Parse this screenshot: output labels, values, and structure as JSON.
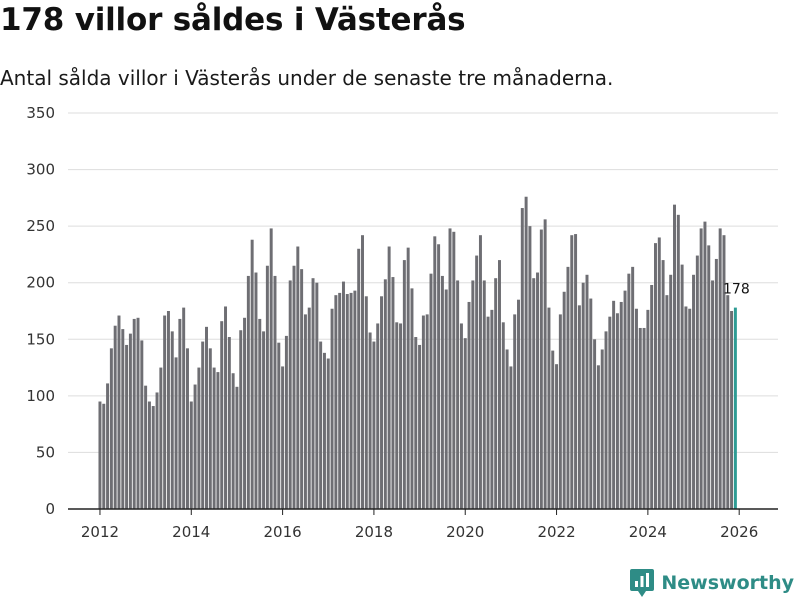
{
  "title": "178 villor såldes i Västerås",
  "subtitle": "Antal sålda villor i Västerås under de senaste tre månaderna.",
  "brand": "Newsworthy",
  "colors": {
    "bar": "#6e6e73",
    "highlight": "#2e9c94",
    "grid": "#dddddd",
    "axis": "#222222",
    "brand": "#2e8c86"
  },
  "chart_data": {
    "type": "bar",
    "title": "178 villor såldes i Västerås",
    "xlabel": "",
    "ylabel": "",
    "ylim": [
      0,
      350
    ],
    "yticks": [
      0,
      50,
      100,
      150,
      200,
      250,
      300,
      350
    ],
    "xticks": [
      "2012",
      "2014",
      "2016",
      "2018",
      "2020",
      "2022",
      "2024",
      "2026"
    ],
    "xlim": [
      2011.3,
      2026.85
    ],
    "grid": true,
    "legend": "none",
    "first_period": 2012.0,
    "period_step": 0.0833333,
    "values": [
      95,
      93,
      111,
      142,
      162,
      171,
      159,
      145,
      155,
      168,
      169,
      149,
      109,
      95,
      91,
      103,
      125,
      171,
      175,
      157,
      134,
      168,
      178,
      142,
      95,
      110,
      125,
      148,
      161,
      142,
      125,
      121,
      166,
      179,
      152,
      120,
      108,
      158,
      169,
      206,
      238,
      209,
      168,
      157,
      215,
      248,
      206,
      147,
      126,
      153,
      202,
      215,
      232,
      212,
      172,
      178,
      204,
      200,
      148,
      138,
      133,
      177,
      189,
      191,
      201,
      190,
      191,
      193,
      230,
      242,
      188,
      156,
      148,
      164,
      188,
      203,
      232,
      205,
      165,
      164,
      220,
      231,
      195,
      152,
      145,
      171,
      172,
      208,
      241,
      234,
      206,
      194,
      248,
      245,
      202,
      164,
      151,
      183,
      202,
      224,
      242,
      202,
      170,
      176,
      204,
      220,
      165,
      141,
      126,
      172,
      185,
      266,
      276,
      250,
      204,
      209,
      247,
      256,
      178,
      140,
      128,
      172,
      192,
      214,
      242,
      243,
      180,
      200,
      207,
      186,
      150,
      127,
      141,
      157,
      170,
      184,
      173,
      183,
      193,
      208,
      214,
      177,
      160,
      160,
      176,
      198,
      235,
      240,
      220,
      189,
      207,
      269,
      260,
      216,
      179,
      177,
      207,
      224,
      248,
      254,
      233,
      202,
      221,
      248,
      242,
      189,
      175,
      178
    ],
    "highlight_last": true,
    "annotation": {
      "label": "178",
      "value": 178
    }
  }
}
